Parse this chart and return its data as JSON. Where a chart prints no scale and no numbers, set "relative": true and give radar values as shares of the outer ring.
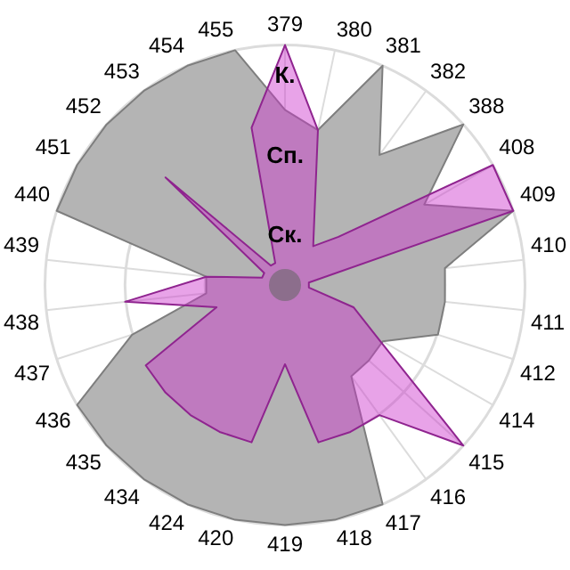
{
  "chart_data": {
    "type": "radar",
    "relative": true,
    "grid": true,
    "legend": false,
    "marker": "none",
    "categories": [
      "379",
      "380",
      "381",
      "382",
      "388",
      "408",
      "409",
      "410",
      "411",
      "412",
      "414",
      "415",
      "416",
      "417",
      "418",
      "419",
      "420",
      "424",
      "434",
      "435",
      "436",
      "437",
      "438",
      "439",
      "440",
      "451",
      "452",
      "453",
      "454",
      "455"
    ],
    "series": [
      {
        "color": "#b4b4b4",
        "values": [
          0.73,
          0.66,
          1.0,
          0.67,
          1.0,
          0.67,
          1.0,
          0.67,
          0.67,
          0.67,
          0.47,
          0.47,
          0.47,
          1.0,
          1.0,
          1.0,
          1.0,
          1.0,
          1.0,
          1.0,
          1.0,
          0.67,
          0.33,
          0.33,
          1.0,
          1.0,
          1.0,
          1.0,
          1.0,
          1.0
        ]
      },
      {
        "color": "#cc33cc",
        "values": [
          1.0,
          0.66,
          0.3,
          0.2,
          0.3,
          1.0,
          1.0,
          0.1,
          0.1,
          0.3,
          0.45,
          1.0,
          0.67,
          0.67,
          0.67,
          0.33,
          0.67,
          0.67,
          0.67,
          0.67,
          0.67,
          0.3,
          0.67,
          0.33,
          0.1,
          0.1,
          0.67,
          0.1,
          0.1,
          0.67
        ]
      }
    ],
    "annotations": [
      "К.",
      "Сп.",
      "Ск."
    ]
  }
}
